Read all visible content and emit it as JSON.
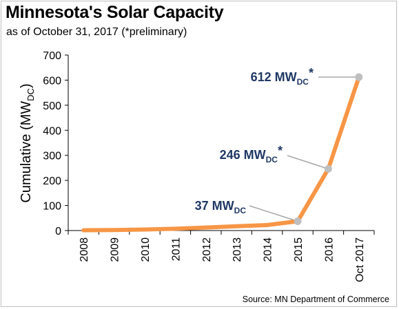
{
  "title": "Minnesota's Solar Capacity",
  "subtitle": "as of October 31, 2017 (*preliminary)",
  "source": "Source: MN Department of Commerce",
  "colors": {
    "line": "#f79646",
    "marker": "#bfbfbf",
    "callout": "#1f3864",
    "axis": "#000000"
  },
  "chart_data": {
    "type": "line",
    "title": "Minnesota's Solar Capacity",
    "subtitle": "as of October 31, 2017 (*preliminary)",
    "xlabel": "",
    "ylabel": "Cumulative (MW",
    "ylabel_sub": "DC",
    "ylabel_close": ")",
    "ylim": [
      0,
      700
    ],
    "yticks": [
      0,
      100,
      200,
      300,
      400,
      500,
      600,
      700
    ],
    "grid": false,
    "categories": [
      "2008",
      "2009",
      "2010",
      "2011",
      "2012",
      "2013",
      "2014",
      "2015",
      "2016",
      "Oct 2017"
    ],
    "series": [
      {
        "values": [
          1,
          2,
          4,
          7,
          12,
          17,
          22,
          37,
          246,
          612
        ]
      }
    ],
    "annotations": [
      {
        "index": 7,
        "value": "37",
        "unit": "MW",
        "unit_sub": "DC",
        "star": ""
      },
      {
        "index": 8,
        "value": "246",
        "unit": "MW",
        "unit_sub": "DC",
        "star": "*"
      },
      {
        "index": 9,
        "value": "612",
        "unit": "MW",
        "unit_sub": "DC",
        "star": "*"
      }
    ]
  }
}
